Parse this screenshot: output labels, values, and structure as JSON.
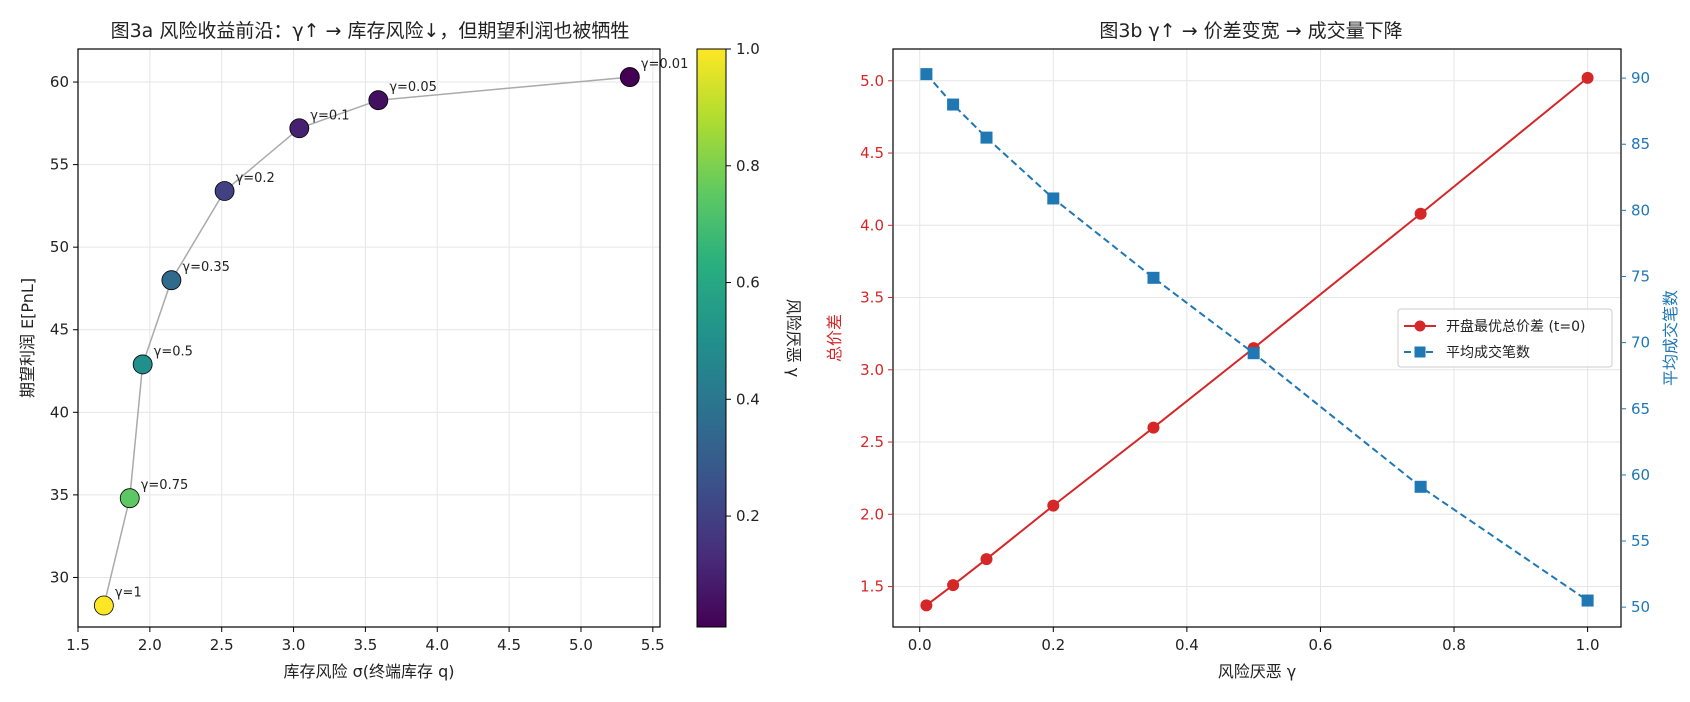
{
  "chart_data": [
    {
      "type": "scatter",
      "title": "图3a  风险收益前沿：γ↑ → 库存风险↓，但期望利润也被牺牲",
      "xlabel": "库存风险  σ(终端库存 q)",
      "ylabel": "期望利润  E[PnL]",
      "colorbar_label": "风险厌恶 γ",
      "colormap": "viridis",
      "xlim": [
        1.5,
        5.55
      ],
      "ylim": [
        27,
        62
      ],
      "xticks": [
        "1.5",
        "2.0",
        "2.5",
        "3.0",
        "3.5",
        "4.0",
        "4.5",
        "5.0",
        "5.5"
      ],
      "yticks": [
        "30",
        "35",
        "40",
        "45",
        "50",
        "55",
        "60"
      ],
      "colorbar_range": [
        0.01,
        1.0
      ],
      "colorbar_ticks": [
        "0.2",
        "0.4",
        "0.6",
        "0.8",
        "1.0"
      ],
      "grid": true,
      "connecting_line_color": "#aaaaaa",
      "points": [
        {
          "x": 5.34,
          "y": 60.3,
          "gamma": 0.01,
          "label": "γ=0.01"
        },
        {
          "x": 3.59,
          "y": 58.9,
          "gamma": 0.05,
          "label": "γ=0.05"
        },
        {
          "x": 3.04,
          "y": 57.2,
          "gamma": 0.1,
          "label": "γ=0.1"
        },
        {
          "x": 2.52,
          "y": 53.4,
          "gamma": 0.2,
          "label": "γ=0.2"
        },
        {
          "x": 2.15,
          "y": 48.0,
          "gamma": 0.35,
          "label": "γ=0.35"
        },
        {
          "x": 1.95,
          "y": 42.9,
          "gamma": 0.5,
          "label": "γ=0.5"
        },
        {
          "x": 1.86,
          "y": 34.8,
          "gamma": 0.75,
          "label": "γ=0.75"
        },
        {
          "x": 1.68,
          "y": 28.3,
          "gamma": 1.0,
          "label": "γ=1"
        }
      ]
    },
    {
      "type": "line",
      "title": "图3b  γ↑ → 价差变宽 → 成交量下降",
      "xlabel": "风险厌恶 γ",
      "ylabel_left": "总价差",
      "ylabel_right": "平均成交笔数",
      "xlim": [
        -0.04,
        1.05
      ],
      "ylim_left": [
        1.22,
        5.22
      ],
      "ylim_right": [
        48.5,
        92.2
      ],
      "xticks": [
        "0.0",
        "0.2",
        "0.4",
        "0.6",
        "0.8",
        "1.0"
      ],
      "yticks_left": [
        "1.5",
        "2.0",
        "2.5",
        "3.0",
        "3.5",
        "4.0",
        "4.5",
        "5.0"
      ],
      "yticks_right": [
        "50",
        "55",
        "60",
        "65",
        "70",
        "75",
        "80",
        "85",
        "90"
      ],
      "grid": true,
      "legend_position": "center-right",
      "x": [
        0.01,
        0.05,
        0.1,
        0.2,
        0.35,
        0.5,
        0.75,
        1.0
      ],
      "series": [
        {
          "name": "开盘最优总价差 (t=0)",
          "axis": "left",
          "color": "#d62728",
          "marker": "circle",
          "style": "solid",
          "values": [
            1.37,
            1.51,
            1.69,
            2.06,
            2.6,
            3.15,
            4.08,
            5.02
          ]
        },
        {
          "name": "平均成交笔数",
          "axis": "right",
          "color": "#1f77b4",
          "marker": "square",
          "style": "dashed",
          "values": [
            90.3,
            88.0,
            85.5,
            80.9,
            74.9,
            69.2,
            59.1,
            50.5
          ]
        }
      ]
    }
  ]
}
